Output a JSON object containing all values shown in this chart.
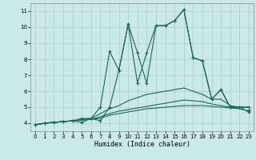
{
  "xlabel": "Humidex (Indice chaleur)",
  "bg_color": "#cce9e9",
  "grid_color": "#aacccc",
  "line_color": "#1a6655",
  "xlim": [
    -0.5,
    23.5
  ],
  "ylim": [
    3.5,
    11.5
  ],
  "yticks": [
    4,
    5,
    6,
    7,
    8,
    9,
    10,
    11
  ],
  "xticks": [
    0,
    1,
    2,
    3,
    4,
    5,
    6,
    7,
    8,
    9,
    10,
    11,
    12,
    13,
    14,
    15,
    16,
    17,
    18,
    19,
    20,
    21,
    22,
    23
  ],
  "line1_x": [
    0,
    1,
    2,
    3,
    4,
    5,
    6,
    7,
    8,
    9,
    10,
    11,
    12,
    13,
    14,
    15,
    16,
    17,
    18,
    19,
    20,
    21,
    22,
    23
  ],
  "line1_y": [
    3.9,
    4.0,
    4.05,
    4.1,
    4.15,
    4.05,
    4.3,
    4.15,
    5.0,
    7.3,
    10.2,
    8.4,
    6.5,
    10.1,
    10.1,
    10.4,
    11.1,
    8.1,
    7.9,
    5.5,
    6.1,
    5.0,
    5.0,
    4.7
  ],
  "line1_markers": [
    0,
    1,
    2,
    3,
    4,
    5,
    6,
    7,
    8,
    9,
    10,
    11,
    12,
    13,
    14,
    15,
    16,
    17,
    18,
    19,
    20,
    21,
    22,
    23
  ],
  "line2_x": [
    0,
    1,
    2,
    3,
    4,
    5,
    6,
    7,
    8,
    9,
    10,
    11,
    12,
    13,
    14,
    15,
    16,
    17,
    18,
    19,
    20,
    21,
    22,
    23
  ],
  "line2_y": [
    3.9,
    4.0,
    4.05,
    4.1,
    4.15,
    4.3,
    4.3,
    5.0,
    8.5,
    7.3,
    10.2,
    6.5,
    8.4,
    10.1,
    10.1,
    10.4,
    11.1,
    8.1,
    7.9,
    5.5,
    6.1,
    5.0,
    5.0,
    5.0
  ],
  "line2_markers": [
    0,
    1,
    2,
    3,
    4,
    5,
    6,
    7,
    8,
    9,
    10,
    11,
    12,
    13,
    14,
    15,
    16,
    17,
    18,
    19,
    20,
    21,
    22,
    23
  ],
  "line3_x": [
    0,
    1,
    2,
    3,
    4,
    5,
    6,
    7,
    8,
    9,
    10,
    11,
    12,
    13,
    14,
    15,
    16,
    17,
    18,
    19,
    20,
    21,
    22,
    23
  ],
  "line3_y": [
    3.9,
    4.0,
    4.05,
    4.1,
    4.15,
    4.2,
    4.3,
    4.6,
    4.9,
    5.1,
    5.4,
    5.6,
    5.8,
    5.9,
    6.0,
    6.1,
    6.2,
    6.0,
    5.8,
    5.5,
    5.5,
    5.1,
    5.0,
    5.0
  ],
  "line4_x": [
    0,
    1,
    2,
    3,
    4,
    5,
    6,
    7,
    8,
    9,
    10,
    11,
    12,
    13,
    14,
    15,
    16,
    17,
    18,
    19,
    20,
    21,
    22,
    23
  ],
  "line4_y": [
    3.9,
    4.0,
    4.05,
    4.1,
    4.15,
    4.2,
    4.25,
    4.4,
    4.6,
    4.75,
    4.85,
    4.95,
    5.05,
    5.15,
    5.25,
    5.35,
    5.45,
    5.4,
    5.35,
    5.2,
    5.1,
    5.0,
    5.0,
    5.0
  ],
  "line5_x": [
    0,
    1,
    2,
    3,
    4,
    5,
    6,
    7,
    8,
    9,
    10,
    11,
    12,
    13,
    14,
    15,
    16,
    17,
    18,
    19,
    20,
    21,
    22,
    23
  ],
  "line5_y": [
    3.9,
    4.0,
    4.05,
    4.1,
    4.15,
    4.2,
    4.25,
    4.3,
    4.5,
    4.6,
    4.7,
    4.8,
    4.9,
    4.95,
    5.0,
    5.05,
    5.1,
    5.1,
    5.1,
    5.05,
    5.0,
    4.95,
    4.9,
    4.75
  ]
}
